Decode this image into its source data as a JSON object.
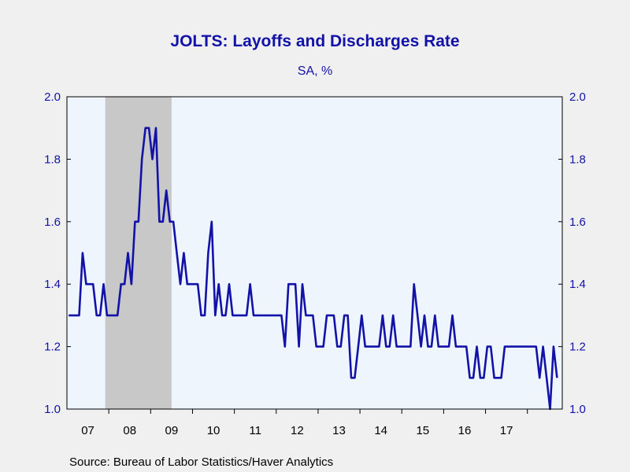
{
  "chart_data": {
    "type": "line",
    "title": "JOLTS: Layoffs and Discharges Rate",
    "subtitle": "SA, %",
    "source": "Source:  Bureau of Labor Statistics/Haver Analytics",
    "ylim": [
      1.0,
      2.0
    ],
    "yticks": [
      "1.0",
      "1.2",
      "1.4",
      "1.6",
      "1.8",
      "2.0"
    ],
    "xticks": [
      "07",
      "08",
      "09",
      "10",
      "11",
      "12",
      "13",
      "14",
      "15",
      "16",
      "17"
    ],
    "grid": false,
    "recession": {
      "start": "2007-12",
      "end": "2009-06"
    },
    "colors": {
      "line": "#1212a8",
      "recession": "#c8c8c8",
      "plot_bg": "#eef5fd",
      "text": "#1212a8"
    },
    "series": [
      {
        "start": "2007-01",
        "frequency": "monthly",
        "values": [
          1.3,
          1.3,
          1.3,
          1.3,
          1.5,
          1.4,
          1.4,
          1.4,
          1.3,
          1.3,
          1.4,
          1.3,
          1.3,
          1.3,
          1.3,
          1.4,
          1.4,
          1.5,
          1.4,
          1.6,
          1.6,
          1.8,
          1.9,
          1.9,
          1.8,
          1.9,
          1.6,
          1.6,
          1.7,
          1.6,
          1.6,
          1.5,
          1.4,
          1.5,
          1.4,
          1.4,
          1.4,
          1.4,
          1.3,
          1.3,
          1.5,
          1.6,
          1.3,
          1.4,
          1.3,
          1.3,
          1.4,
          1.3,
          1.3,
          1.3,
          1.3,
          1.3,
          1.4,
          1.3,
          1.3,
          1.3,
          1.3,
          1.3,
          1.3,
          1.3,
          1.3,
          1.3,
          1.2,
          1.4,
          1.4,
          1.4,
          1.2,
          1.4,
          1.3,
          1.3,
          1.3,
          1.2,
          1.2,
          1.2,
          1.3,
          1.3,
          1.3,
          1.2,
          1.2,
          1.3,
          1.3,
          1.1,
          1.1,
          1.2,
          1.3,
          1.2,
          1.2,
          1.2,
          1.2,
          1.2,
          1.3,
          1.2,
          1.2,
          1.3,
          1.2,
          1.2,
          1.2,
          1.2,
          1.2,
          1.4,
          1.3,
          1.2,
          1.3,
          1.2,
          1.2,
          1.3,
          1.2,
          1.2,
          1.2,
          1.2,
          1.3,
          1.2,
          1.2,
          1.2,
          1.2,
          1.1,
          1.1,
          1.2,
          1.1,
          1.1,
          1.2,
          1.2,
          1.1,
          1.1,
          1.1,
          1.2,
          1.2,
          1.2,
          1.2,
          1.2,
          1.2,
          1.2,
          1.2,
          1.2,
          1.2,
          1.1,
          1.2,
          1.1,
          1.0,
          1.2,
          1.1
        ]
      }
    ]
  }
}
